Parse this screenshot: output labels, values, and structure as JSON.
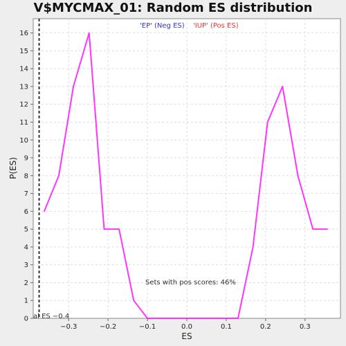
{
  "chart_data": {
    "type": "line",
    "title": "V$MYCMAX_01: Random ES distribution",
    "xlabel": "ES",
    "ylabel": "P(ES)",
    "xlim": [
      -0.39,
      0.39
    ],
    "ylim": [
      0,
      16.8
    ],
    "x_ticks": [
      -0.3,
      -0.2,
      -0.1,
      0.0,
      0.1,
      0.2,
      0.3
    ],
    "x_tick_labels": [
      "−0.3",
      "−0.2",
      "−0.1",
      "0.0",
      "0.1",
      "0.2",
      "0.3"
    ],
    "y_ticks": [
      0,
      1,
      2,
      3,
      4,
      5,
      6,
      7,
      8,
      9,
      10,
      11,
      12,
      13,
      14,
      15,
      16
    ],
    "grid": true,
    "legend": [
      {
        "label": "'EP' (Neg ES)",
        "color": "#3333cc"
      },
      {
        "label": "'IUP' (Pos ES)",
        "color": "#ee3333"
      }
    ],
    "legend_placement": "top-center",
    "series": [
      {
        "color": "#ff33ff",
        "x": [
          -0.362,
          -0.325,
          -0.288,
          -0.248,
          -0.21,
          -0.172,
          -0.135,
          -0.1,
          0.0,
          0.1,
          0.13,
          0.168,
          0.205,
          0.243,
          0.282,
          0.32,
          0.357
        ],
        "y": [
          6,
          8,
          13,
          16,
          5,
          5,
          1,
          0,
          0,
          0,
          0,
          4,
          11,
          13,
          8,
          5,
          5
        ]
      }
    ],
    "real_es": {
      "x": -0.375,
      "label": "al ES −0.4"
    },
    "annotation": "Sets with pos scores: 46%"
  }
}
